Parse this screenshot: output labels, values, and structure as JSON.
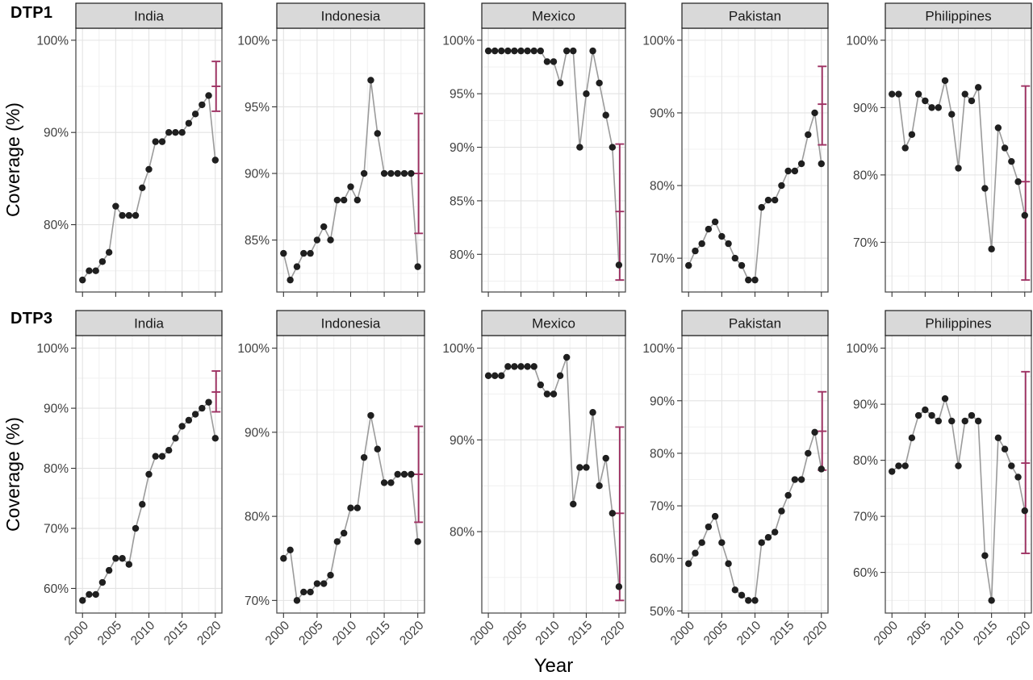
{
  "figure": {
    "row_labels": [
      "DTP1",
      "DTP3"
    ],
    "y_axis_title": "Coverage (%)",
    "x_axis_title": "Year",
    "colors": {
      "point": "#1f1f1f",
      "line": "#9b9b9b",
      "errorbar": "#9e3263",
      "strip_fill": "#d9d9d9",
      "strip_border": "#1c1c1c",
      "panel_border": "#4f4f4f",
      "grid_major": "#e3e3e3",
      "grid_minor": "#f0f0f0",
      "tick": "#343434",
      "tick_label": "#3f3f3f"
    }
  },
  "chart_data": {
    "type": "line",
    "title": "",
    "xlabel": "Year",
    "ylabel": "Coverage (%)",
    "x_ticks": [
      2000,
      2005,
      2010,
      2015,
      2020
    ],
    "x_minor_ticks": [
      2002.5,
      2007.5,
      2012.5,
      2017.5
    ],
    "xlim": [
      1999,
      2021
    ],
    "years": [
      2000,
      2001,
      2002,
      2003,
      2004,
      2005,
      2006,
      2007,
      2008,
      2009,
      2010,
      2011,
      2012,
      2013,
      2014,
      2015,
      2016,
      2017,
      2018,
      2019,
      2020
    ],
    "tick_format_suffix": "%",
    "legend": "none",
    "grid": "on",
    "facets": [
      {
        "row": "DTP1",
        "country": "India",
        "values": [
          74,
          75,
          75,
          76,
          77,
          82,
          81,
          81,
          81,
          84,
          86,
          89,
          89,
          90,
          90,
          90,
          91,
          92,
          93,
          94,
          87
        ],
        "y_ticks": [
          80,
          90,
          100
        ],
        "error_bar_2020": {
          "low": 92.3,
          "center": 95,
          "high": 97.7
        }
      },
      {
        "row": "DTP1",
        "country": "Indonesia",
        "values": [
          84,
          82,
          83,
          84,
          84,
          85,
          86,
          85,
          88,
          88,
          89,
          88,
          90,
          97,
          93,
          90,
          90,
          90,
          90,
          90,
          83
        ],
        "y_ticks": [
          85,
          90,
          95,
          100
        ],
        "error_bar_2020": {
          "low": 85.5,
          "center": 90,
          "high": 94.5
        }
      },
      {
        "row": "DTP1",
        "country": "Mexico",
        "values": [
          99,
          99,
          99,
          99,
          99,
          99,
          99,
          99,
          99,
          98,
          98,
          96,
          99,
          99,
          90,
          95,
          99,
          96,
          93,
          90,
          79
        ],
        "y_ticks": [
          80,
          85,
          90,
          95,
          100
        ],
        "error_bar_2020": {
          "low": 77.6,
          "center": 84,
          "high": 90.3
        }
      },
      {
        "row": "DTP1",
        "country": "Pakistan",
        "values": [
          69,
          71,
          72,
          74,
          75,
          73,
          72,
          70,
          69,
          67,
          67,
          77,
          78,
          78,
          80,
          82,
          82,
          83,
          87,
          90,
          83
        ],
        "y_ticks": [
          70,
          80,
          90,
          100
        ],
        "error_bar_2020": {
          "low": 85.6,
          "center": 91.2,
          "high": 96.4
        }
      },
      {
        "row": "DTP1",
        "country": "Philippines",
        "values": [
          92,
          92,
          84,
          86,
          92,
          91,
          90,
          90,
          94,
          89,
          81,
          92,
          91,
          93,
          78,
          69,
          87,
          84,
          82,
          79,
          74
        ],
        "y_ticks": [
          70,
          80,
          90,
          100
        ],
        "error_bar_2020": {
          "low": 64.4,
          "center": 79,
          "high": 93.2
        }
      },
      {
        "row": "DTP3",
        "country": "India",
        "values": [
          58,
          59,
          59,
          61,
          63,
          65,
          65,
          64,
          70,
          74,
          79,
          82,
          82,
          83,
          85,
          87,
          88,
          89,
          90,
          91,
          85
        ],
        "y_ticks": [
          60,
          70,
          80,
          90,
          100
        ],
        "error_bar_2020": {
          "low": 89.4,
          "center": 92.7,
          "high": 96.2
        }
      },
      {
        "row": "DTP3",
        "country": "Indonesia",
        "values": [
          75,
          76,
          70,
          71,
          71,
          72,
          72,
          73,
          77,
          78,
          81,
          81,
          87,
          92,
          88,
          84,
          84,
          85,
          85,
          85,
          77
        ],
        "y_ticks": [
          70,
          80,
          90,
          100
        ],
        "error_bar_2020": {
          "low": 79.3,
          "center": 85,
          "high": 90.7
        }
      },
      {
        "row": "DTP3",
        "country": "Mexico",
        "values": [
          97,
          97,
          97,
          98,
          98,
          98,
          98,
          98,
          96,
          95,
          95,
          97,
          99,
          83,
          87,
          87,
          93,
          85,
          88,
          82,
          74
        ],
        "y_ticks": [
          80,
          90,
          100
        ],
        "error_bar_2020": {
          "low": 72.5,
          "center": 82,
          "high": 91.4
        }
      },
      {
        "row": "DTP3",
        "country": "Pakistan",
        "values": [
          59,
          61,
          63,
          66,
          68,
          63,
          59,
          54,
          53,
          52,
          52,
          63,
          64,
          65,
          69,
          72,
          75,
          75,
          80,
          84,
          77
        ],
        "y_ticks": [
          50,
          60,
          70,
          80,
          90,
          100
        ],
        "error_bar_2020": {
          "low": 76.8,
          "center": 84.2,
          "high": 91.7
        }
      },
      {
        "row": "DTP3",
        "country": "Philippines",
        "values": [
          78,
          79,
          79,
          84,
          88,
          89,
          88,
          87,
          91,
          87,
          79,
          87,
          88,
          87,
          63,
          55,
          84,
          82,
          79,
          77,
          71
        ],
        "y_ticks": [
          60,
          70,
          80,
          90,
          100
        ],
        "error_bar_2020": {
          "low": 63.4,
          "center": 79.5,
          "high": 95.8
        }
      }
    ]
  }
}
